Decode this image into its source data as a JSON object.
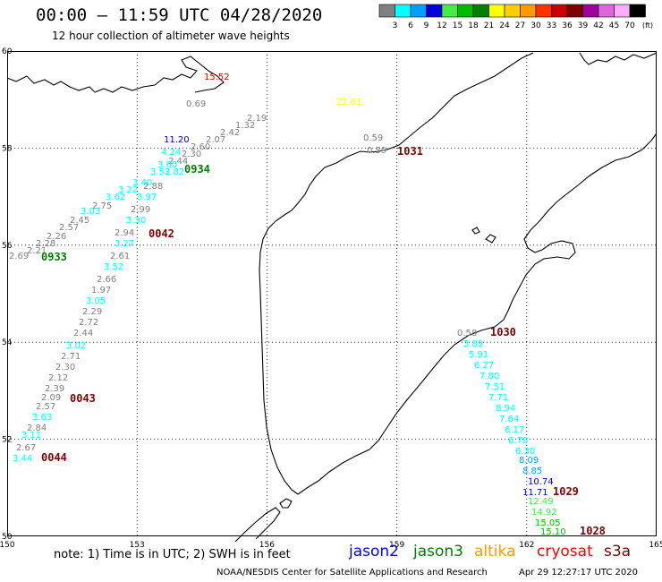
{
  "header": {
    "title": "00:00 – 11:59 UTC 04/28/2020",
    "subtitle": "12 hour collection of altimeter wave heights"
  },
  "colorbar": {
    "unit_label": "(ft)",
    "bins": [
      {
        "label": "3",
        "color": "#808080"
      },
      {
        "label": "6",
        "color": "#00ffff"
      },
      {
        "label": "9",
        "color": "#00a0ff"
      },
      {
        "label": "12",
        "color": "#0000dd"
      },
      {
        "label": "15",
        "color": "#44ee44"
      },
      {
        "label": "18",
        "color": "#00bb00"
      },
      {
        "label": "21",
        "color": "#008000"
      },
      {
        "label": "24",
        "color": "#ffff00"
      },
      {
        "label": "27",
        "color": "#ffcc00"
      },
      {
        "label": "30",
        "color": "#ff9900"
      },
      {
        "label": "33",
        "color": "#ff3300"
      },
      {
        "label": "36",
        "color": "#cc0000"
      },
      {
        "label": "39",
        "color": "#800000"
      },
      {
        "label": "42",
        "color": "#a000a0"
      },
      {
        "label": "45",
        "color": "#dd66dd"
      },
      {
        "label": "70",
        "color": "#ffaaff"
      },
      {
        "label": "",
        "color": "#000000"
      }
    ]
  },
  "map": {
    "lat_labels": [
      "60",
      "58",
      "56",
      "54",
      "52",
      "50"
    ],
    "lon_labels": [
      "150",
      "153",
      "156",
      "159",
      "162",
      "165"
    ],
    "grid": "dotted",
    "pass_times": [
      {
        "text": "0934",
        "color": "#008000"
      },
      {
        "text": "0042",
        "color": "#800000"
      },
      {
        "text": "0933",
        "color": "#008000"
      },
      {
        "text": "0043",
        "color": "#800000"
      },
      {
        "text": "0044",
        "color": "#800000"
      },
      {
        "text": "1031",
        "color": "#800000"
      },
      {
        "text": "1030",
        "color": "#800000"
      },
      {
        "text": "1029",
        "color": "#800000"
      },
      {
        "text": "1028",
        "color": "#800000"
      }
    ],
    "wave_heights": [
      {
        "text": "15.52",
        "color": "#cc0000"
      },
      {
        "text": "0.69",
        "color": "#808080"
      },
      {
        "text": "22.61",
        "color": "#ffff00"
      },
      {
        "text": "2.19",
        "color": "#808080"
      },
      {
        "text": "1.32",
        "color": "#808080"
      },
      {
        "text": "2.42",
        "color": "#808080"
      },
      {
        "text": "2.07",
        "color": "#808080"
      },
      {
        "text": "2.60",
        "color": "#808080"
      },
      {
        "text": "2.30",
        "color": "#808080"
      },
      {
        "text": "11.20",
        "color": "#0000dd"
      },
      {
        "text": "4.24",
        "color": "#00ffff"
      },
      {
        "text": "2.44",
        "color": "#808080"
      },
      {
        "text": "3.60",
        "color": "#00ffff"
      },
      {
        "text": "3.52",
        "color": "#00ffff"
      },
      {
        "text": "3.82",
        "color": "#00ffff"
      },
      {
        "text": "2.88",
        "color": "#808080"
      },
      {
        "text": "3.40",
        "color": "#00ffff"
      },
      {
        "text": "3.22",
        "color": "#00ffff"
      },
      {
        "text": "3.97",
        "color": "#00ffff"
      },
      {
        "text": "3.62",
        "color": "#00ffff"
      },
      {
        "text": "2.75",
        "color": "#808080"
      },
      {
        "text": "2.99",
        "color": "#808080"
      },
      {
        "text": "3.03",
        "color": "#00ffff"
      },
      {
        "text": "3.30",
        "color": "#00ffff"
      },
      {
        "text": "2.45",
        "color": "#808080"
      },
      {
        "text": "2.57",
        "color": "#808080"
      },
      {
        "text": "2.94",
        "color": "#808080"
      },
      {
        "text": "2.26",
        "color": "#808080"
      },
      {
        "text": "3.27",
        "color": "#00ffff"
      },
      {
        "text": "2.28",
        "color": "#808080"
      },
      {
        "text": "2.21",
        "color": "#808080"
      },
      {
        "text": "2.69",
        "color": "#808080"
      },
      {
        "text": "2.61",
        "color": "#808080"
      },
      {
        "text": "3.52",
        "color": "#00ffff"
      },
      {
        "text": "2.66",
        "color": "#808080"
      },
      {
        "text": "1.97",
        "color": "#808080"
      },
      {
        "text": "3.05",
        "color": "#00ffff"
      },
      {
        "text": "2.29",
        "color": "#808080"
      },
      {
        "text": "2.72",
        "color": "#808080"
      },
      {
        "text": "2.44",
        "color": "#808080"
      },
      {
        "text": "3.02",
        "color": "#00ffff"
      },
      {
        "text": "2.71",
        "color": "#808080"
      },
      {
        "text": "2.30",
        "color": "#808080"
      },
      {
        "text": "2.12",
        "color": "#808080"
      },
      {
        "text": "2.39",
        "color": "#808080"
      },
      {
        "text": "2.09",
        "color": "#808080"
      },
      {
        "text": "2.57",
        "color": "#808080"
      },
      {
        "text": "3.63",
        "color": "#00ffff"
      },
      {
        "text": "2.84",
        "color": "#808080"
      },
      {
        "text": "3.11",
        "color": "#00ffff"
      },
      {
        "text": "2.67",
        "color": "#808080"
      },
      {
        "text": "3.44",
        "color": "#00ffff"
      },
      {
        "text": "0.59",
        "color": "#808080"
      },
      {
        "text": "0.59",
        "color": "#808080"
      },
      {
        "text": "0.58",
        "color": "#808080"
      },
      {
        "text": "3.89",
        "color": "#00ffff"
      },
      {
        "text": "5.91",
        "color": "#00ffff"
      },
      {
        "text": "6.27",
        "color": "#00ffff"
      },
      {
        "text": "7.80",
        "color": "#00ffff"
      },
      {
        "text": "7.51",
        "color": "#00ffff"
      },
      {
        "text": "7.71",
        "color": "#00ffff"
      },
      {
        "text": "8.94",
        "color": "#00ffff"
      },
      {
        "text": "7.64",
        "color": "#00ffff"
      },
      {
        "text": "6.17",
        "color": "#00ffff"
      },
      {
        "text": "6.78",
        "color": "#00ffff"
      },
      {
        "text": "6.30",
        "color": "#00ffff"
      },
      {
        "text": "8.09",
        "color": "#00a0ff"
      },
      {
        "text": "8.85",
        "color": "#00a0ff"
      },
      {
        "text": "10.74",
        "color": "#0000dd"
      },
      {
        "text": "11.71",
        "color": "#0000dd"
      },
      {
        "text": "12.49",
        "color": "#44ee44"
      },
      {
        "text": "14.92",
        "color": "#44ee44"
      },
      {
        "text": "15.05",
        "color": "#00bb00"
      },
      {
        "text": "15.10",
        "color": "#00bb00"
      }
    ]
  },
  "footer": {
    "note": "note: 1) Time is in UTC; 2) SWH is in feet",
    "satellites": [
      {
        "name": "jason2",
        "color": "#0000ff"
      },
      {
        "name": "jason3",
        "color": "#008000"
      },
      {
        "name": "altika",
        "color": "#ff9900"
      },
      {
        "name": "cryosat",
        "color": "#ff0000"
      },
      {
        "name": "s3a",
        "color": "#800000"
      }
    ],
    "credit": "NOAA/NESDIS Center for Satellite Applications and Research",
    "timestamp": "Apr 29 12:27:17 UTC 2020"
  }
}
